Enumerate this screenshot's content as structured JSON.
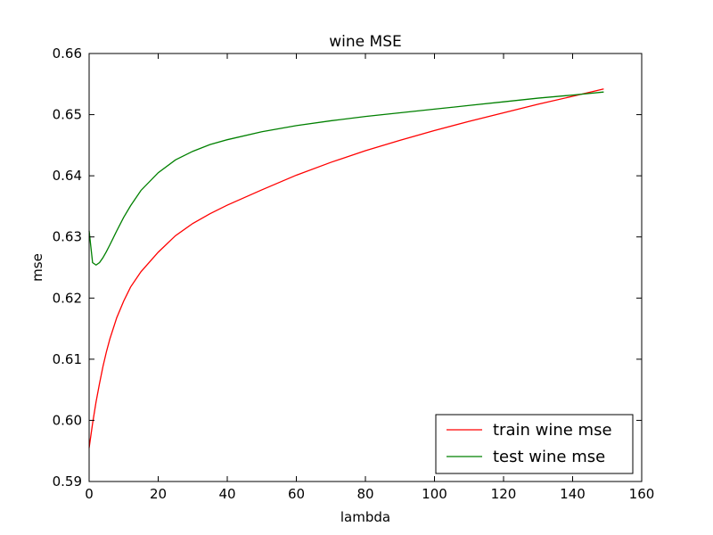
{
  "chart_data": {
    "type": "line",
    "title": "wine MSE",
    "xlabel": "lambda",
    "ylabel": "mse",
    "xlim": [
      0,
      160
    ],
    "ylim": [
      0.59,
      0.66
    ],
    "xticks": [
      0,
      20,
      40,
      60,
      80,
      100,
      120,
      140,
      160
    ],
    "yticks": [
      0.59,
      0.6,
      0.61,
      0.62,
      0.63,
      0.64,
      0.65,
      0.66
    ],
    "xtick_labels": [
      "0",
      "20",
      "40",
      "60",
      "80",
      "100",
      "120",
      "140",
      "160"
    ],
    "ytick_labels": [
      "0.59",
      "0.60",
      "0.61",
      "0.62",
      "0.63",
      "0.64",
      "0.65",
      "0.66"
    ],
    "grid": false,
    "legend_position": "lower-right",
    "series": [
      {
        "name": "train wine mse",
        "color": "#ff0000",
        "x": [
          0,
          1,
          2,
          3,
          4,
          5,
          6,
          8,
          10,
          12,
          15,
          20,
          25,
          30,
          35,
          40,
          50,
          60,
          70,
          80,
          90,
          100,
          110,
          120,
          130,
          140,
          149
        ],
        "y": [
          0.5955,
          0.5995,
          0.603,
          0.606,
          0.6088,
          0.6112,
          0.6133,
          0.6168,
          0.6195,
          0.6218,
          0.6243,
          0.6275,
          0.6302,
          0.6322,
          0.6338,
          0.6352,
          0.6377,
          0.6401,
          0.6422,
          0.6441,
          0.6458,
          0.6474,
          0.6489,
          0.6503,
          0.6517,
          0.653,
          0.6542
        ]
      },
      {
        "name": "test wine mse",
        "color": "#008000",
        "x": [
          0,
          1,
          2,
          3,
          4,
          5,
          6,
          8,
          10,
          12,
          15,
          20,
          25,
          30,
          35,
          40,
          50,
          60,
          70,
          80,
          90,
          100,
          110,
          120,
          130,
          140,
          149
        ],
        "y": [
          0.631,
          0.6258,
          0.6254,
          0.6258,
          0.6266,
          0.6276,
          0.6287,
          0.631,
          0.6332,
          0.6351,
          0.6376,
          0.6405,
          0.6426,
          0.644,
          0.6451,
          0.6459,
          0.6472,
          0.6482,
          0.649,
          0.6497,
          0.6503,
          0.6509,
          0.6515,
          0.6521,
          0.6527,
          0.6532,
          0.6537
        ]
      }
    ]
  }
}
